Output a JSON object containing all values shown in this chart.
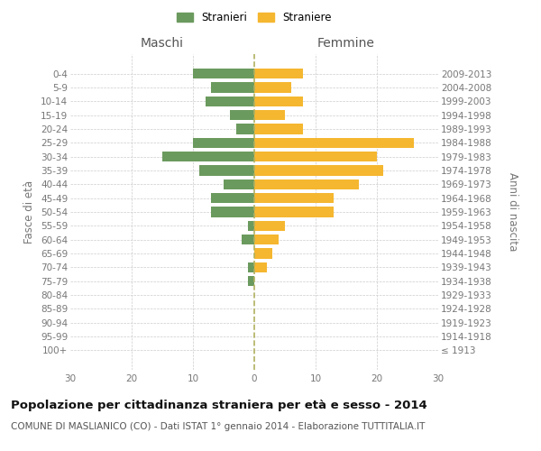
{
  "age_groups": [
    "0-4",
    "5-9",
    "10-14",
    "15-19",
    "20-24",
    "25-29",
    "30-34",
    "35-39",
    "40-44",
    "45-49",
    "50-54",
    "55-59",
    "60-64",
    "65-69",
    "70-74",
    "75-79",
    "80-84",
    "85-89",
    "90-94",
    "95-99",
    "100+"
  ],
  "birth_years": [
    "2009-2013",
    "2004-2008",
    "1999-2003",
    "1994-1998",
    "1989-1993",
    "1984-1988",
    "1979-1983",
    "1974-1978",
    "1969-1973",
    "1964-1968",
    "1959-1963",
    "1954-1958",
    "1949-1953",
    "1944-1948",
    "1939-1943",
    "1934-1938",
    "1929-1933",
    "1924-1928",
    "1919-1923",
    "1914-1918",
    "≤ 1913"
  ],
  "maschi": [
    10,
    7,
    8,
    4,
    3,
    10,
    15,
    9,
    5,
    7,
    7,
    1,
    2,
    0,
    1,
    1,
    0,
    0,
    0,
    0,
    0
  ],
  "femmine": [
    8,
    6,
    8,
    5,
    8,
    26,
    20,
    21,
    17,
    13,
    13,
    5,
    4,
    3,
    2,
    0,
    0,
    0,
    0,
    0,
    0
  ],
  "color_maschi": "#6b9a5e",
  "color_femmine": "#f5b730",
  "bar_height": 0.75,
  "xlim": 30,
  "title": "Popolazione per cittadinanza straniera per età e sesso - 2014",
  "subtitle": "COMUNE DI MASLIANICO (CO) - Dati ISTAT 1° gennaio 2014 - Elaborazione TUTTITALIA.IT",
  "ylabel_left": "Fasce di età",
  "ylabel_right": "Anni di nascita",
  "legend_maschi": "Stranieri",
  "legend_femmine": "Straniere",
  "header_maschi": "Maschi",
  "header_femmine": "Femmine",
  "background_color": "#ffffff",
  "grid_color": "#cccccc",
  "tick_color": "#777777",
  "title_fontsize": 9.5,
  "subtitle_fontsize": 7.5,
  "label_fontsize": 8.5,
  "tick_fontsize": 7.5,
  "header_fontsize": 10
}
